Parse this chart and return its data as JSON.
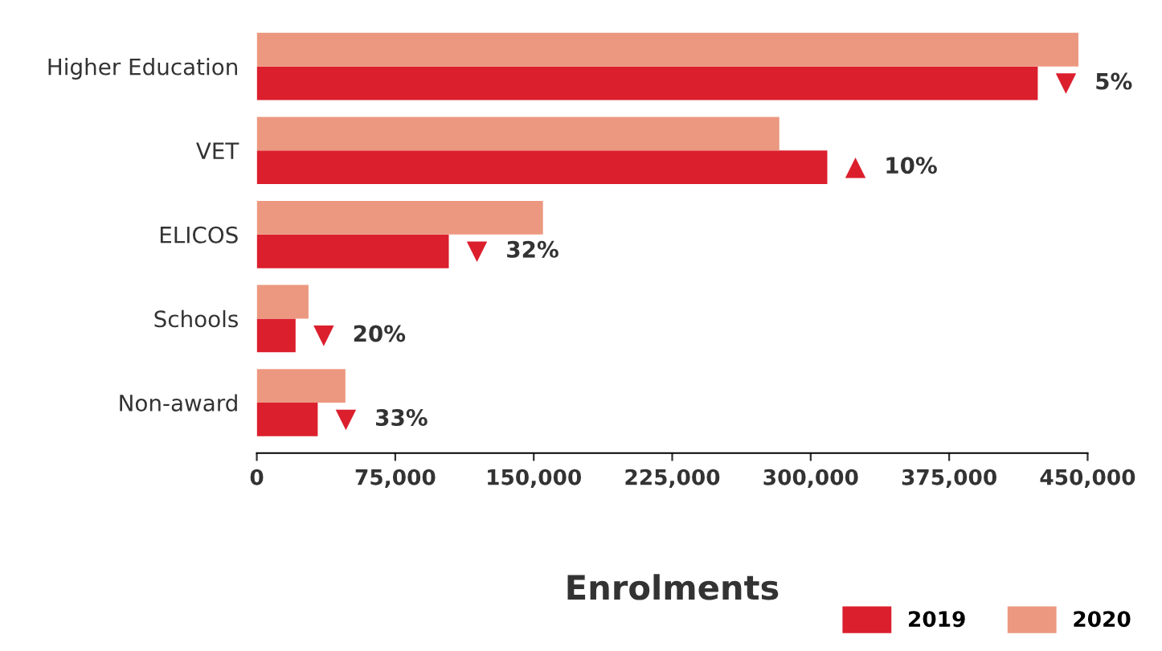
{
  "chart_data": {
    "type": "bar",
    "orientation": "horizontal",
    "xlabel": "Enrolments",
    "categories": [
      "Higher Education",
      "VET",
      "ELICOS",
      "Schools",
      "Non-award"
    ],
    "series": [
      {
        "name": "2019",
        "color": "#db1f2d",
        "values": [
          423000,
          309000,
          104000,
          21000,
          33000
        ]
      },
      {
        "name": "2020",
        "color": "#ec9880",
        "values": [
          445000,
          283000,
          155000,
          28000,
          48000
        ]
      }
    ],
    "xlim": [
      0,
      450000
    ],
    "xticks": [
      0,
      {
        "value": 75000,
        "label": "75,000"
      },
      {
        "value": 150000,
        "label": "150,000"
      },
      {
        "value": 225000,
        "label": "225,000"
      },
      {
        "value": 300000,
        "label": "300,000"
      },
      {
        "value": 375000,
        "label": "375,000"
      },
      {
        "value": 450000,
        "label": "450,000"
      }
    ],
    "annotations": [
      {
        "text": "▼ 5%",
        "x": 423000,
        "y": "Higher Education"
      },
      {
        "text": "▲ 10%",
        "x": 309000,
        "y": "VET"
      },
      {
        "text": "▼ 32%",
        "x": 104000,
        "y": "ELICOS"
      },
      {
        "text": "▼ 20%",
        "x": 21000,
        "y": "Schools"
      },
      {
        "text": "▼ 33%",
        "x": 33000,
        "y": "Non-award"
      }
    ],
    "legend": "bottom right",
    "grid": false
  }
}
